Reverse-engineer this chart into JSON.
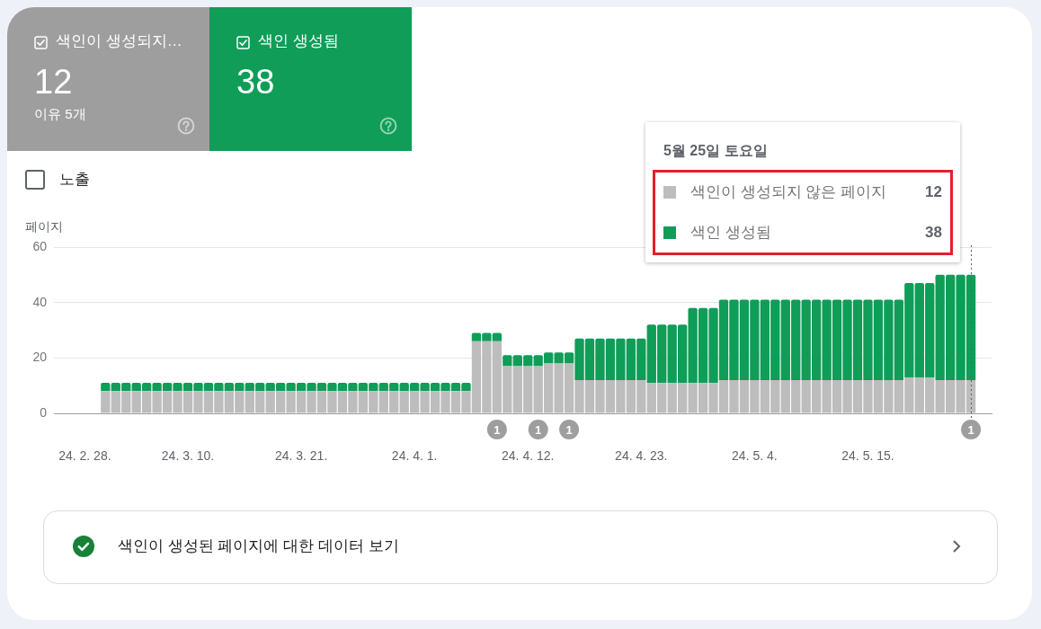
{
  "chart_data": [
    {
      "type": "other",
      "title": "색인이 생성되지…",
      "annotations": [
        "12",
        "이유 5개"
      ],
      "color": "#9e9e9e"
    },
    {
      "type": "other",
      "title": "색인 생성됨",
      "annotations": [
        "38"
      ],
      "color": "#0f9d58"
    },
    {
      "type": "bar",
      "ylabel": "페이지",
      "stacked": true,
      "x": [
        "--03-02",
        "--03-03",
        "--03-04",
        "--03-05",
        "--03-06",
        "--03-07",
        "--03-08",
        "--03-09",
        "--03-10",
        "--03-11",
        "--03-12",
        "--03-13",
        "--03-14",
        "--03-15",
        "--03-16",
        "--03-17",
        "--03-18",
        "--03-19",
        "--03-20",
        "--03-21",
        "--03-22",
        "--03-23",
        "--03-24",
        "--03-25",
        "--03-26",
        "--03-27",
        "--03-28",
        "--03-29",
        "--03-30",
        "--03-31",
        "--04-01",
        "--04-02",
        "--04-03",
        "--04-04",
        "--04-05",
        "--04-06",
        "--04-07",
        "--04-08",
        "--04-09",
        "--04-10",
        "--04-11",
        "--04-12",
        "--04-13",
        "--04-14",
        "--04-15",
        "--04-16",
        "--04-17",
        "--04-18",
        "--04-19",
        "--04-20",
        "--04-21",
        "--04-22",
        "--04-23",
        "--04-24",
        "--04-25",
        "--04-26",
        "--04-27",
        "--04-28",
        "--04-29",
        "--04-30",
        "--05-01",
        "--05-02",
        "--05-03",
        "--05-04",
        "--05-05",
        "--05-06",
        "--05-07",
        "--05-08",
        "--05-09",
        "--05-10",
        "--05-11",
        "--05-12",
        "--05-13",
        "--05-14",
        "--05-15",
        "--05-16",
        "--05-17",
        "--05-18",
        "--05-19",
        "--05-20",
        "--05-21",
        "--05-22",
        "--05-23",
        "--05-24",
        "--05-25"
      ],
      "series": [
        {
          "name": "색인이 생성되지 않은 페이지",
          "color": "#bdbdbd",
          "values": [
            8,
            8,
            8,
            8,
            8,
            8,
            8,
            8,
            8,
            8,
            8,
            8,
            8,
            8,
            8,
            8,
            8,
            8,
            8,
            8,
            8,
            8,
            8,
            8,
            8,
            8,
            8,
            8,
            8,
            8,
            8,
            8,
            8,
            8,
            8,
            8,
            26,
            26,
            26,
            17,
            17,
            17,
            17,
            18,
            18,
            18,
            12,
            12,
            12,
            12,
            12,
            12,
            12,
            11,
            11,
            11,
            11,
            11,
            11,
            11,
            12,
            12,
            12,
            12,
            12,
            12,
            12,
            12,
            12,
            12,
            12,
            12,
            12,
            12,
            12,
            12,
            12,
            12,
            13,
            13,
            13,
            12,
            12,
            12,
            12
          ]
        },
        {
          "name": "색인 생성됨",
          "color": "#0f9d58",
          "values": [
            3,
            3,
            3,
            3,
            3,
            3,
            3,
            3,
            3,
            3,
            3,
            3,
            3,
            3,
            3,
            3,
            3,
            3,
            3,
            3,
            3,
            3,
            3,
            3,
            3,
            3,
            3,
            3,
            3,
            3,
            3,
            3,
            3,
            3,
            3,
            3,
            3,
            3,
            3,
            4,
            4,
            4,
            4,
            4,
            4,
            4,
            15,
            15,
            15,
            15,
            15,
            15,
            15,
            21,
            21,
            21,
            21,
            27,
            27,
            27,
            29,
            29,
            29,
            29,
            29,
            29,
            29,
            29,
            29,
            29,
            29,
            29,
            29,
            29,
            29,
            29,
            29,
            29,
            34,
            34,
            34,
            38,
            38,
            38,
            38
          ]
        }
      ],
      "xlim": [
        "--02-25",
        "--05-27"
      ],
      "xticks": [
        {
          "value": "--02-28",
          "label": "24. 2. 28."
        },
        {
          "value": "--03-10",
          "label": "24. 3. 10."
        },
        {
          "value": "--03-21",
          "label": "24. 3. 21."
        },
        {
          "value": "--04-01",
          "label": "24. 4. 1."
        },
        {
          "value": "--04-12",
          "label": "24. 4. 12."
        },
        {
          "value": "--04-23",
          "label": "24. 4. 23."
        },
        {
          "value": "--05-04",
          "label": "24. 5. 4."
        },
        {
          "value": "--05-15",
          "label": "24. 5. 15."
        }
      ],
      "ylim": [
        0,
        60
      ],
      "yticks": [
        0,
        20,
        40,
        60
      ],
      "grid": "y",
      "legend": "top right",
      "legend_title": "5월 25일 토요일",
      "ref_lines": [
        {
          "axis": "x",
          "value": "--05-25",
          "line_style": "dotted",
          "color": "#5f6368"
        }
      ],
      "annotations": [
        "노출",
        "색인이 생성된 페이지에 대한 데이터 보기",
        "12",
        "38",
        {
          "text": "1",
          "x": "--04-09",
          "y": 0
        },
        {
          "text": "1",
          "x": "--04-13",
          "y": 0
        },
        {
          "text": "1",
          "x": "--04-16",
          "y": 0
        },
        {
          "text": "1",
          "x": "--05-25",
          "y": 0
        }
      ]
    }
  ]
}
